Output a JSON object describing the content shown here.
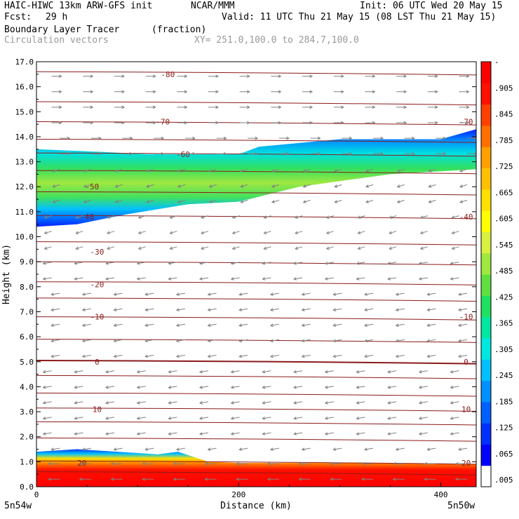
{
  "header": {
    "title": "HAIC-HIWC 13km ARW-GFS init",
    "org": "NCAR/MMM",
    "init": "Init: 06 UTC Wed 20 May 15",
    "fcst_label": "Fcst:",
    "fcst_value": "29 h",
    "valid": "Valid: 11 UTC Thu 21 May 15 (08 LST Thu 21 May 15)",
    "field": "Boundary Layer Tracer",
    "units": "(fraction)",
    "vectors": "Circulation vectors",
    "xy": "XY= 251.0,100.0 to 284.7,100.0"
  },
  "colors": {
    "contour": "#8b1a1a",
    "vector": "#808080",
    "colorbar": [
      "#ffffff",
      "#0000ff",
      "#0030ff",
      "#0060ff",
      "#0090ff",
      "#00c0ff",
      "#00e8e0",
      "#00e8a0",
      "#20e060",
      "#60e040",
      "#a0e840",
      "#d8f040",
      "#ffff00",
      "#ffe000",
      "#ffc000",
      "#ffa000",
      "#ff7000",
      "#ff4000",
      "#ff1000",
      "#ff0000"
    ]
  },
  "chart_data": {
    "type": "contour-section",
    "xlabel": "Distance (km)",
    "ylabel": "Height (km)",
    "xlim": [
      0,
      435
    ],
    "ylim": [
      0,
      17
    ],
    "x_ticks": [
      "0",
      "200",
      "400"
    ],
    "y_ticks": [
      "0.0",
      "1.0",
      "2.0",
      "3.0",
      "4.0",
      "5.0",
      "6.0",
      "7.0",
      "8.0",
      "9.0",
      "10.0",
      "11.0",
      "12.0",
      "13.0",
      "14.0",
      "15.0",
      "16.0",
      "17.0"
    ],
    "x_endpoints": [
      "5n54w",
      "5n50w"
    ],
    "colorbar_labels": [
      ".005",
      ".065",
      ".125",
      ".185",
      ".245",
      ".305",
      ".365",
      ".425",
      ".485",
      ".545",
      ".605",
      ".665",
      ".725",
      ".785",
      ".845",
      ".905",
      "-"
    ],
    "contour_labels": [
      {
        "text": "-80",
        "x": 130,
        "y": 16.5
      },
      {
        "text": "-70",
        "x": 125,
        "y": 14.6
      },
      {
        "text": "-70",
        "x": 425,
        "y": 14.6
      },
      {
        "text": "-60",
        "x": 145,
        "y": 13.3
      },
      {
        "text": "-50",
        "x": 55,
        "y": 12.0
      },
      {
        "text": "-40",
        "x": 50,
        "y": 10.8
      },
      {
        "text": "-40",
        "x": 425,
        "y": 10.8
      },
      {
        "text": "-30",
        "x": 60,
        "y": 9.4
      },
      {
        "text": "-20",
        "x": 60,
        "y": 8.1
      },
      {
        "text": "-10",
        "x": 60,
        "y": 6.8
      },
      {
        "text": "-10",
        "x": 425,
        "y": 6.8
      },
      {
        "text": "0",
        "x": 60,
        "y": 5.0
      },
      {
        "text": "0",
        "x": 425,
        "y": 5.0
      },
      {
        "text": "10",
        "x": 60,
        "y": 3.1
      },
      {
        "text": "10",
        "x": 425,
        "y": 3.1
      },
      {
        "text": "20",
        "x": 45,
        "y": 0.95
      },
      {
        "text": "20",
        "x": 425,
        "y": 0.95
      }
    ],
    "tracer_layers": [
      {
        "name": "upper",
        "top": [
          [
            0,
            13.5
          ],
          [
            60,
            13.4
          ],
          [
            110,
            13.3
          ],
          [
            200,
            13.3
          ],
          [
            220,
            13.6
          ],
          [
            300,
            13.9
          ],
          [
            400,
            13.9
          ],
          [
            435,
            14.3
          ]
        ],
        "bottom": [
          [
            0,
            10.4
          ],
          [
            40,
            10.5
          ],
          [
            90,
            10.9
          ],
          [
            150,
            11.3
          ],
          [
            200,
            11.4
          ],
          [
            260,
            12.0
          ],
          [
            350,
            12.5
          ],
          [
            435,
            12.7
          ]
        ]
      },
      {
        "name": "boundary",
        "top": [
          [
            0,
            1.4
          ],
          [
            40,
            1.5
          ],
          [
            80,
            1.4
          ],
          [
            120,
            1.3
          ],
          [
            140,
            1.4
          ],
          [
            170,
            1.0
          ],
          [
            200,
            0.95
          ],
          [
            300,
            0.95
          ],
          [
            435,
            0.9
          ]
        ],
        "bottom": [
          [
            0,
            0
          ],
          [
            435,
            0
          ]
        ]
      }
    ]
  }
}
